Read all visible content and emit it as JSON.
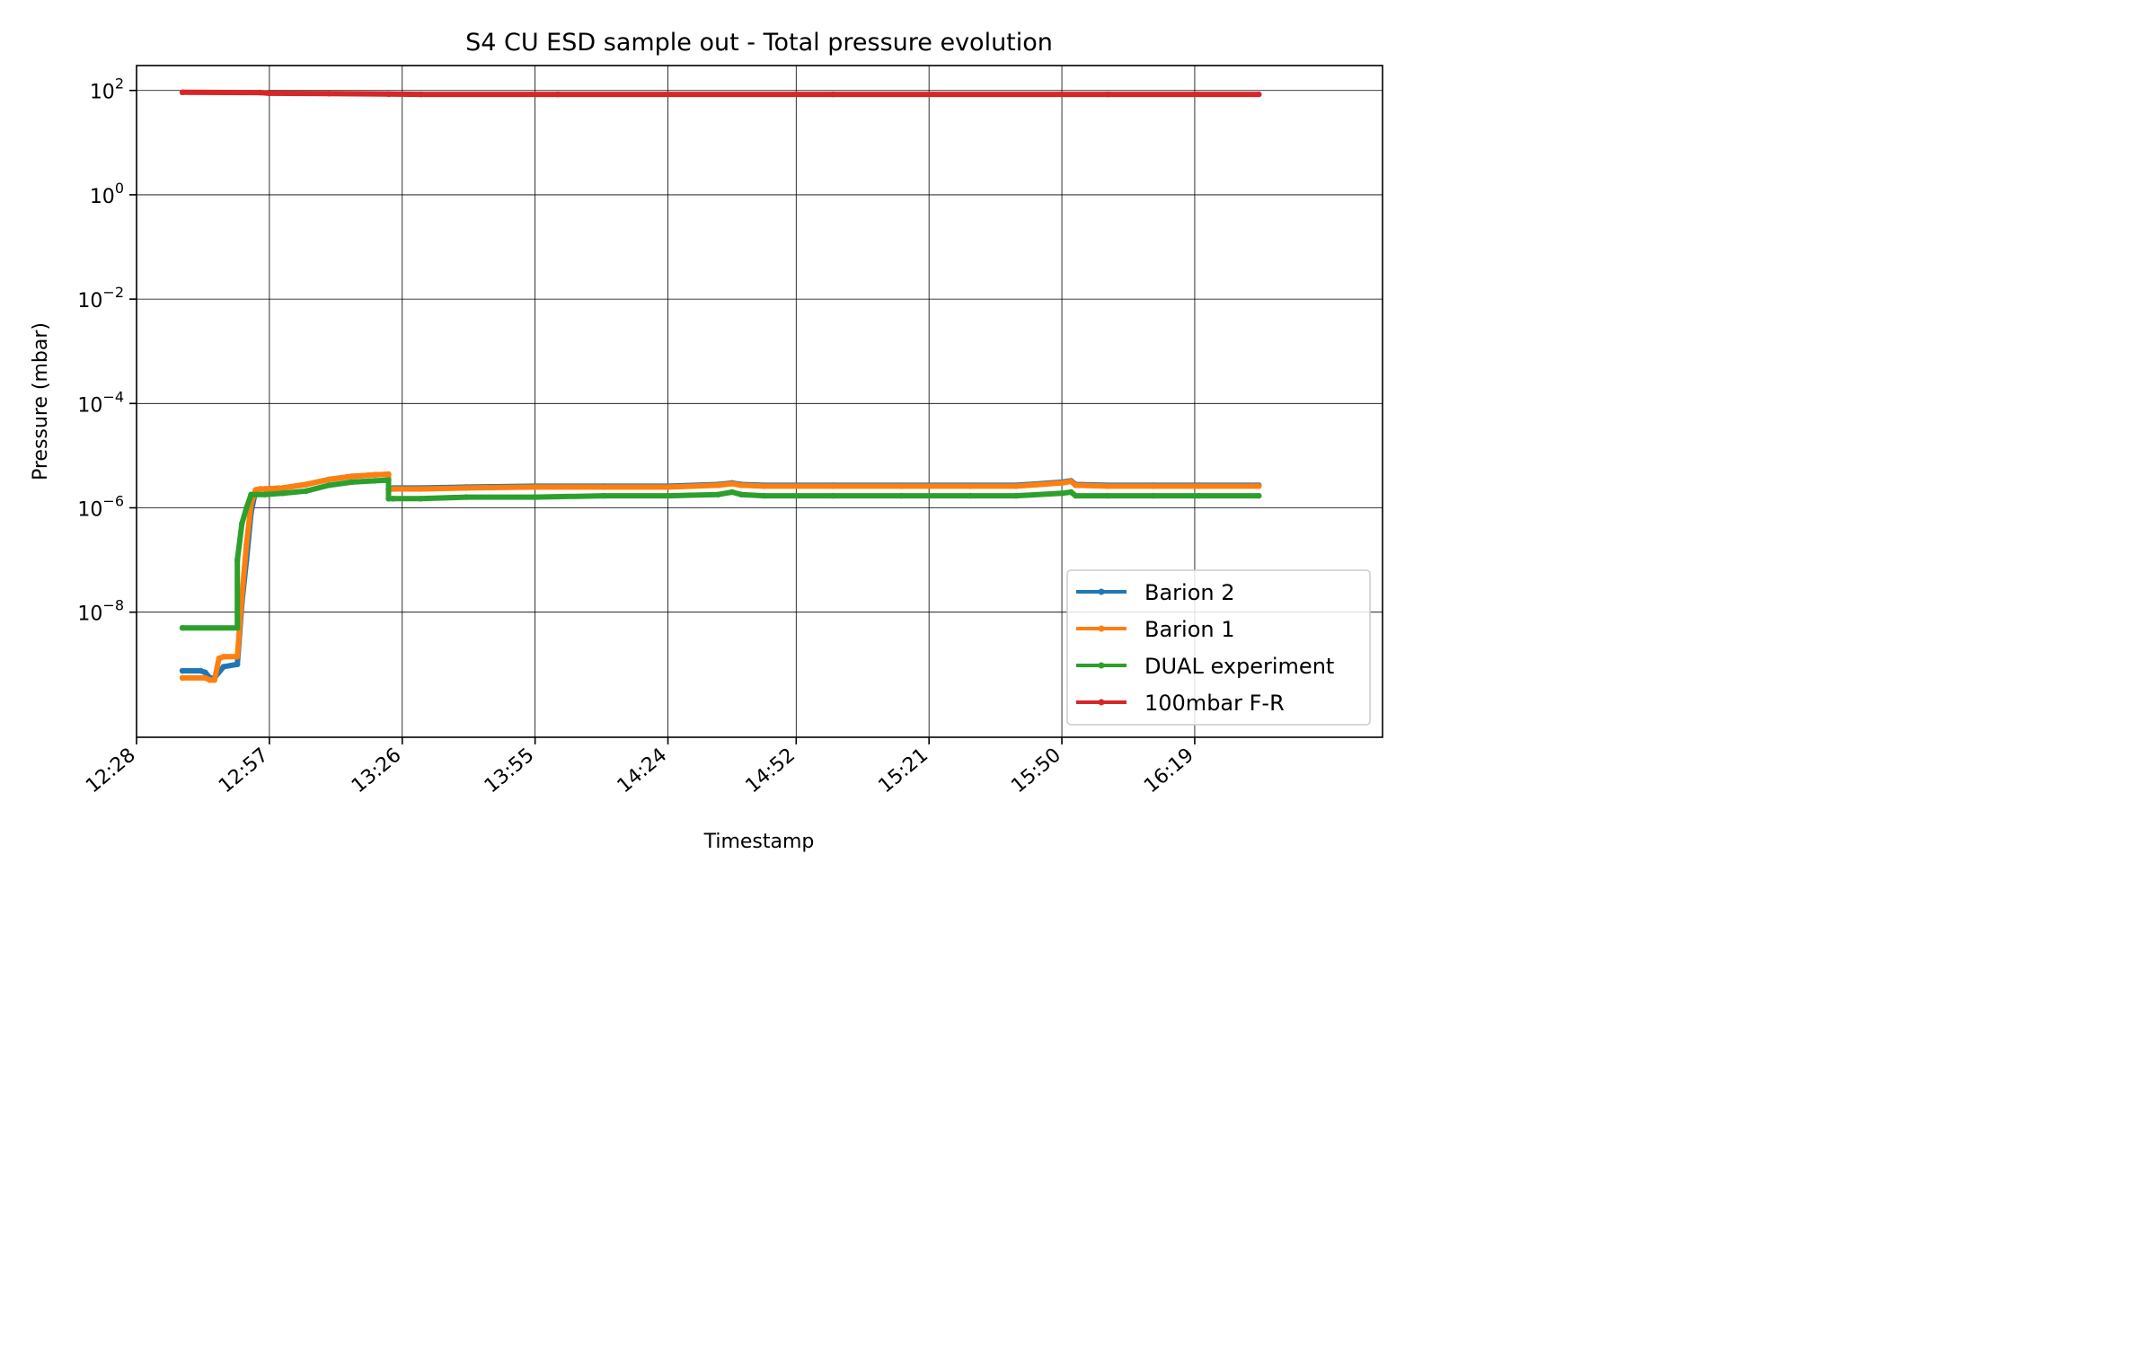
{
  "chart_data": {
    "type": "line",
    "title": "S4 CU ESD sample out - Total pressure evolution",
    "xlabel": "Timestamp",
    "ylabel": "Pressure (mbar)",
    "yscale": "log",
    "grid": true,
    "legend_position": "lower-right",
    "x_ticks": [
      "12:28",
      "12:57",
      "13:26",
      "13:55",
      "14:24",
      "14:52",
      "15:21",
      "15:50",
      "16:19"
    ],
    "y_ticks": [
      {
        "value": 1e-08,
        "base": "10",
        "exp": "−8"
      },
      {
        "value": 1e-06,
        "base": "10",
        "exp": "−6"
      },
      {
        "value": 0.0001,
        "base": "10",
        "exp": "−4"
      },
      {
        "value": 0.01,
        "base": "10",
        "exp": "−2"
      },
      {
        "value": 1,
        "base": "10",
        "exp": "0"
      },
      {
        "value": 100,
        "base": "10",
        "exp": "2"
      }
    ],
    "xlim": [
      "12:28",
      "17:00"
    ],
    "ylim": [
      4e-11,
      300
    ],
    "series": [
      {
        "name": "Barion 2",
        "color": "#1f77b4",
        "x": [
          "12:38",
          "12:42",
          "12:43",
          "12:44",
          "12:45",
          "12:47",
          "12:50",
          "12:51",
          "12:52",
          "12:53",
          "12:54",
          "12:55",
          "12:56",
          "13:00",
          "13:05",
          "13:10",
          "13:15",
          "13:20",
          "13:23",
          "13:23",
          "13:24",
          "13:30",
          "13:40",
          "13:55",
          "14:10",
          "14:24",
          "14:35",
          "14:38",
          "14:40",
          "14:45",
          "15:00",
          "15:15",
          "15:30",
          "15:40",
          "15:50",
          "15:52",
          "15:53",
          "16:00",
          "16:10",
          "16:20",
          "16:33"
        ],
        "y": [
          7.5e-10,
          7.5e-10,
          7e-10,
          5.5e-10,
          5.5e-10,
          9e-10,
          1e-09,
          1.5e-08,
          1e-07,
          8e-07,
          2.2e-06,
          2.3e-06,
          2.3e-06,
          2.4e-06,
          2.8e-06,
          3.5e-06,
          4e-06,
          4.3e-06,
          4.4e-06,
          2.3e-06,
          2.4e-06,
          2.4e-06,
          2.5e-06,
          2.6e-06,
          2.6e-06,
          2.6e-06,
          2.8e-06,
          3e-06,
          2.8e-06,
          2.7e-06,
          2.7e-06,
          2.7e-06,
          2.7e-06,
          2.7e-06,
          3.1e-06,
          3.3e-06,
          2.8e-06,
          2.7e-06,
          2.7e-06,
          2.7e-06,
          2.7e-06
        ]
      },
      {
        "name": "Barion 1",
        "color": "#ff7f0e",
        "x": [
          "12:38",
          "12:43",
          "12:44",
          "12:45",
          "12:46",
          "12:47",
          "12:50",
          "12:51",
          "12:52",
          "12:53",
          "12:54",
          "12:55",
          "12:56",
          "13:00",
          "13:05",
          "13:10",
          "13:15",
          "13:20",
          "13:23",
          "13:23",
          "13:24",
          "13:30",
          "13:40",
          "13:55",
          "14:10",
          "14:24",
          "14:35",
          "14:38",
          "14:40",
          "14:45",
          "15:00",
          "15:15",
          "15:30",
          "15:40",
          "15:50",
          "15:52",
          "15:53",
          "16:00",
          "16:10",
          "16:20",
          "16:33"
        ],
        "y": [
          5.5e-10,
          5.5e-10,
          5e-10,
          5e-10,
          1.3e-09,
          1.4e-09,
          1.4e-09,
          2e-08,
          2e-07,
          1.2e-06,
          2.2e-06,
          2.3e-06,
          2.3e-06,
          2.4e-06,
          2.8e-06,
          3.5e-06,
          4e-06,
          4.3e-06,
          4.4e-06,
          2.2e-06,
          2.3e-06,
          2.3e-06,
          2.4e-06,
          2.5e-06,
          2.5e-06,
          2.5e-06,
          2.7e-06,
          2.9e-06,
          2.7e-06,
          2.6e-06,
          2.6e-06,
          2.6e-06,
          2.6e-06,
          2.6e-06,
          3e-06,
          3.2e-06,
          2.7e-06,
          2.6e-06,
          2.6e-06,
          2.6e-06,
          2.6e-06
        ]
      },
      {
        "name": "DUAL experiment",
        "color": "#2ca02c",
        "x": [
          "12:38",
          "12:50",
          "12:50",
          "12:51",
          "12:52",
          "12:53",
          "12:56",
          "13:00",
          "13:05",
          "13:10",
          "13:15",
          "13:20",
          "13:23",
          "13:23",
          "13:24",
          "13:30",
          "13:40",
          "13:55",
          "14:10",
          "14:24",
          "14:35",
          "14:38",
          "14:40",
          "14:45",
          "15:00",
          "15:15",
          "15:30",
          "15:40",
          "15:50",
          "15:52",
          "15:53",
          "16:00",
          "16:10",
          "16:20",
          "16:33"
        ],
        "y": [
          5e-09,
          5e-09,
          1e-07,
          5e-07,
          1e-06,
          1.8e-06,
          1.8e-06,
          1.9e-06,
          2.1e-06,
          2.7e-06,
          3.1e-06,
          3.3e-06,
          3.4e-06,
          1.5e-06,
          1.5e-06,
          1.5e-06,
          1.6e-06,
          1.6e-06,
          1.7e-06,
          1.7e-06,
          1.8e-06,
          2e-06,
          1.8e-06,
          1.7e-06,
          1.7e-06,
          1.7e-06,
          1.7e-06,
          1.7e-06,
          1.9e-06,
          2e-06,
          1.7e-06,
          1.7e-06,
          1.7e-06,
          1.7e-06,
          1.7e-06
        ]
      },
      {
        "name": "100mbar F-R",
        "color": "#d62728",
        "x": [
          "12:38",
          "12:55",
          "12:57",
          "13:10",
          "13:23",
          "13:30",
          "14:00",
          "15:00",
          "16:00",
          "16:33"
        ],
        "y": [
          92,
          91,
          88,
          87,
          85,
          84,
          84,
          84,
          84,
          84
        ]
      }
    ]
  }
}
